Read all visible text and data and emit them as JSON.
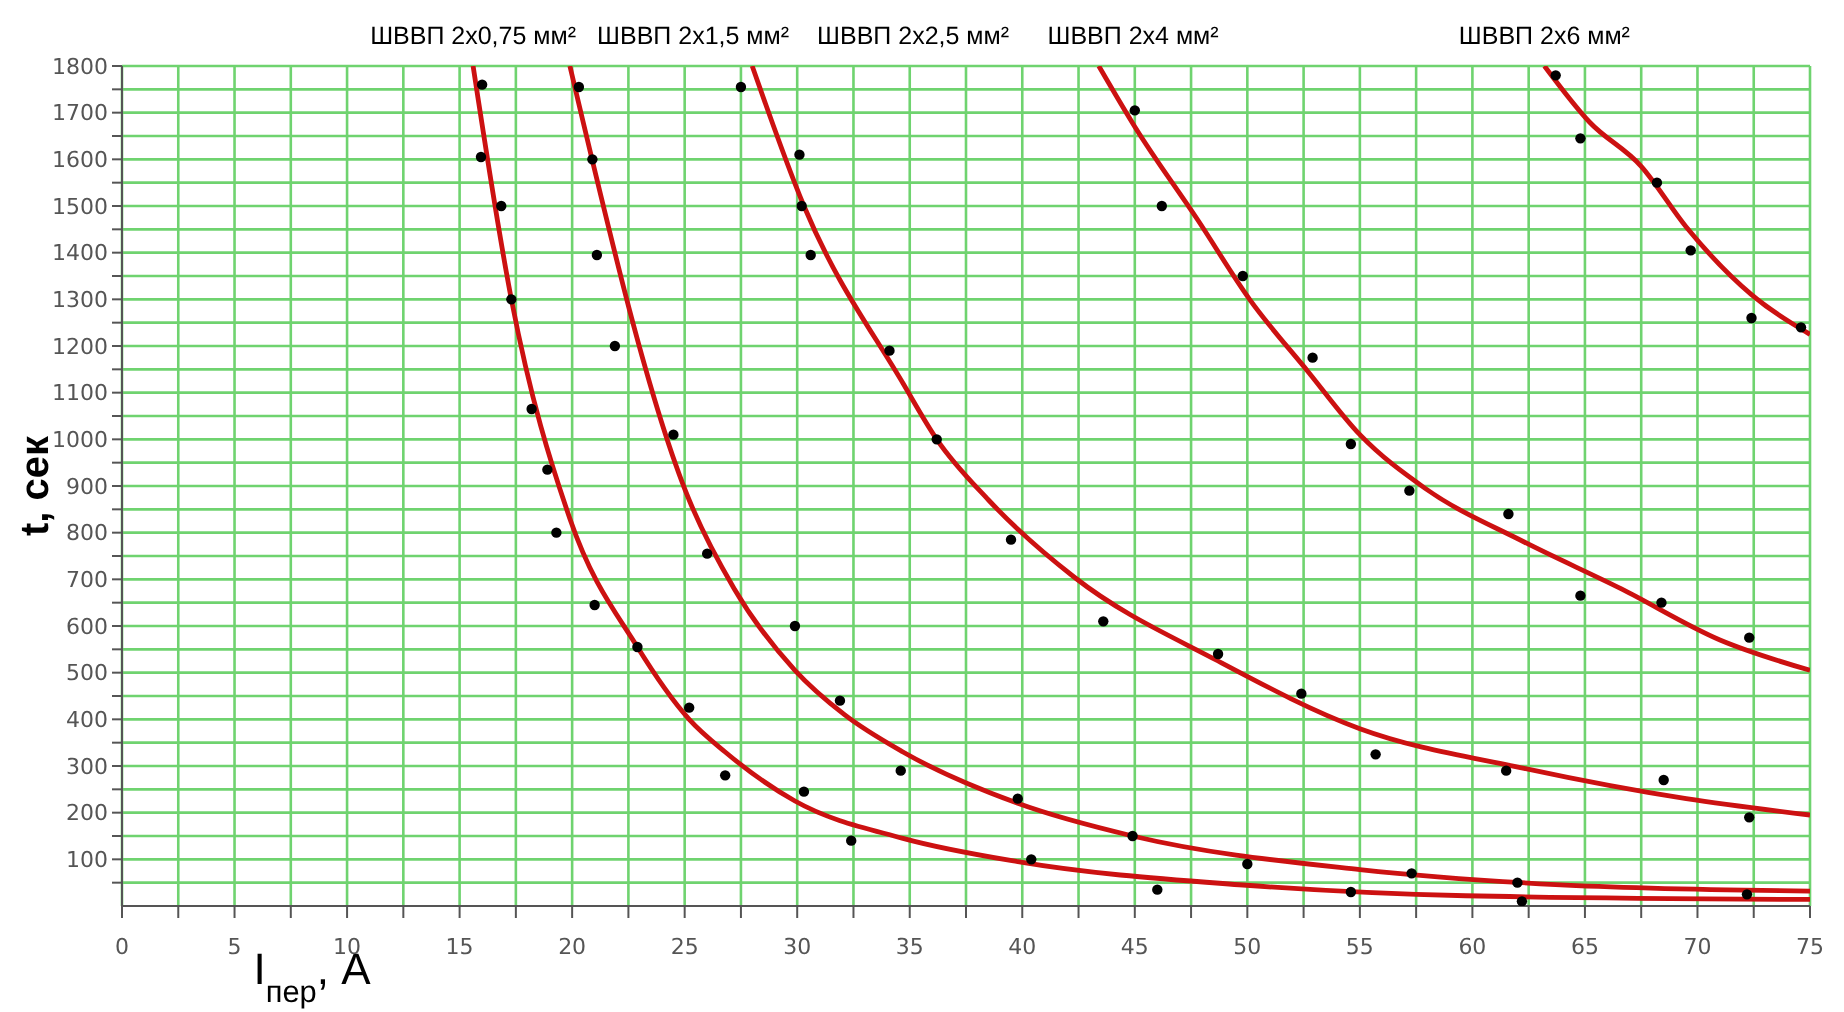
{
  "chart_data": {
    "type": "line",
    "xlabel": "I$_{пер}$, А",
    "ylabel": "t, сек",
    "xlim": [
      0,
      75
    ],
    "ylim": [
      0,
      1800
    ],
    "xticks": [
      0,
      {
        "value": 2.5,
        "label": null
      },
      5,
      {
        "value": 7.5,
        "label": null
      },
      10,
      {
        "value": 12.5,
        "label": null
      },
      15,
      {
        "value": 17.5,
        "label": null
      },
      20,
      {
        "value": 22.5,
        "label": null
      },
      25,
      {
        "value": 27.5,
        "label": null
      },
      30,
      {
        "value": 32.5,
        "label": null
      },
      35,
      {
        "value": 37.5,
        "label": null
      },
      40,
      {
        "value": 42.5,
        "label": null
      },
      45,
      {
        "value": 47.5,
        "label": null
      },
      50,
      {
        "value": 52.5,
        "label": null
      },
      55,
      {
        "value": 57.5,
        "label": null
      },
      60,
      {
        "value": 62.5,
        "label": null
      },
      65,
      {
        "value": 67.5,
        "label": null
      },
      70,
      {
        "value": 72.5,
        "label": null
      },
      75
    ],
    "yticks": [
      {
        "value": 50,
        "label": null
      },
      100,
      {
        "value": 150,
        "label": null
      },
      200,
      {
        "value": 250,
        "label": null
      },
      300,
      {
        "value": 350,
        "label": null
      },
      400,
      {
        "value": 450,
        "label": null
      },
      500,
      {
        "value": 550,
        "label": null
      },
      600,
      {
        "value": 650,
        "label": null
      },
      700,
      {
        "value": 750,
        "label": null
      },
      800,
      {
        "value": 850,
        "label": null
      },
      900,
      {
        "value": 950,
        "label": null
      },
      1000,
      {
        "value": 1050,
        "label": null
      },
      1100,
      {
        "value": 1150,
        "label": null
      },
      1200,
      {
        "value": 1250,
        "label": null
      },
      1300,
      {
        "value": 1350,
        "label": null
      },
      1400,
      {
        "value": 1450,
        "label": null
      },
      1500,
      {
        "value": 1550,
        "label": null
      },
      1600,
      {
        "value": 1650,
        "label": null
      },
      1700,
      {
        "value": 1750,
        "label": null
      },
      1800
    ],
    "grid": true,
    "series": [
      {
        "name": "ШВВП 2х0,75 мм²",
        "marker": "none",
        "color": "#cc1111",
        "x": [
          15.6,
          17.3,
          19.9,
          22.9,
          25.2,
          26.8,
          29.9,
          34.7,
          39.8,
          49.8,
          59.7,
          75
        ],
        "values": [
          1800,
          1300,
          830,
          555,
          400,
          330,
          225,
          145,
          95,
          45,
          22,
          14
        ]
      },
      {
        "name": "ШВВП 2х1,5 мм²",
        "marker": "none",
        "color": "#cc1111",
        "x": [
          19.9,
          25.2,
          27.2,
          29.9,
          32.1,
          34.7,
          39.8,
          44.9,
          55.0,
          63.7,
          75
        ],
        "values": [
          1800,
          870,
          680,
          505,
          410,
          330,
          220,
          150,
          78,
          46,
          32
        ]
      },
      {
        "name": "ШВВП 2х2,5 мм²",
        "marker": "none",
        "color": "#cc1111",
        "x": [
          28.0,
          30.3,
          34.7,
          36.2,
          38.5,
          42.3,
          48.7,
          55.0,
          62.3,
          69.5,
          75
        ],
        "values": [
          1800,
          1500,
          1120,
          1000,
          870,
          705,
          525,
          380,
          295,
          230,
          195
        ]
      },
      {
        "name": "ШВВП 2х4 мм²",
        "marker": "none",
        "color": "#cc1111",
        "x": [
          43.4,
          45.0,
          47.8,
          50.1,
          52.7,
          55.0,
          57.9,
          62.3,
          66.6,
          71.0,
          75
        ],
        "values": [
          1800,
          1670,
          1470,
          1300,
          1145,
          1010,
          895,
          780,
          680,
          570,
          505
        ]
      },
      {
        "name": "ШВВП 2х6 мм²",
        "marker": "none",
        "color": "#cc1111",
        "x": [
          63.2,
          65.2,
          67.5,
          69.5,
          72.4,
          75
        ],
        "values": [
          1800,
          1680,
          1585,
          1455,
          1310,
          1225
        ]
      },
      {
        "type": "scatter",
        "marker": "circle",
        "color": "#000000",
        "x": [
          16.0,
          15.95,
          16.85,
          17.3,
          18.2,
          18.9,
          19.3,
          21.0,
          22.9,
          25.2,
          26.8,
          30.3,
          32.4,
          40.4,
          46.0,
          54.6,
          62.2,
          72.2
        ],
        "values": [
          1760,
          1605,
          1500,
          1300,
          1065,
          935,
          800,
          645,
          555,
          425,
          280,
          245,
          140,
          100,
          35,
          30,
          10,
          25
        ]
      },
      {
        "type": "scatter",
        "marker": "circle",
        "color": "#000000",
        "x": [
          20.3,
          20.9,
          21.1,
          21.9,
          24.5,
          26.0,
          29.9,
          31.9,
          34.6,
          39.8,
          44.9,
          50.0,
          57.3,
          62.0
        ],
        "values": [
          1755,
          1600,
          1395,
          1200,
          1010,
          755,
          600,
          440,
          290,
          230,
          150,
          90,
          70,
          50
        ]
      },
      {
        "type": "scatter",
        "marker": "circle",
        "color": "#000000",
        "x": [
          27.5,
          30.1,
          30.2,
          30.6,
          34.1,
          36.2,
          39.5,
          43.6,
          48.7,
          52.4,
          55.7,
          61.5,
          68.5,
          72.3
        ],
        "values": [
          1755,
          1610,
          1500,
          1395,
          1190,
          1000,
          785,
          610,
          540,
          455,
          325,
          290,
          270,
          190
        ]
      },
      {
        "type": "scatter",
        "marker": "circle",
        "color": "#000000",
        "x": [
          45.0,
          46.2,
          49.8,
          52.9,
          54.6,
          57.2,
          61.6,
          64.8,
          68.4,
          72.3
        ],
        "values": [
          1705,
          1500,
          1350,
          1175,
          990,
          890,
          840,
          665,
          650,
          575
        ]
      },
      {
        "type": "scatter",
        "marker": "circle",
        "color": "#000000",
        "x": [
          63.7,
          64.8,
          68.2,
          69.7,
          72.4,
          74.6
        ],
        "values": [
          1780,
          1645,
          1550,
          1405,
          1260,
          1240
        ]
      }
    ]
  }
}
